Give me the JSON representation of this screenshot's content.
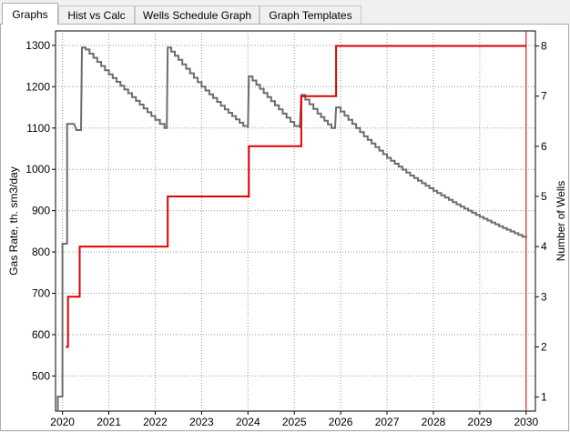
{
  "tabs": [
    {
      "label": "Graphs",
      "active": true
    },
    {
      "label": "Hist vs Calc",
      "active": false
    },
    {
      "label": "Wells Schedule Graph",
      "active": false
    },
    {
      "label": "Graph Templates",
      "active": false
    }
  ],
  "chart_data": {
    "type": "line",
    "title": "",
    "xlabel": "",
    "ylabel": "Gas Rate, th. sm3/day",
    "y2label": "Number of Wells",
    "xlim": [
      2019.85,
      2030.2
    ],
    "ylim": [
      415,
      1335
    ],
    "y2lim": [
      0.72,
      8.3
    ],
    "grid": true,
    "x_ticks": [
      2020,
      2021,
      2022,
      2023,
      2024,
      2025,
      2026,
      2027,
      2028,
      2029,
      2030
    ],
    "y_ticks": [
      500,
      600,
      700,
      800,
      900,
      1000,
      1100,
      1200,
      1300
    ],
    "y2_ticks": [
      1,
      2,
      3,
      4,
      5,
      6,
      7,
      8
    ],
    "vline_x": 2030,
    "colors": {
      "gas": "#6d6d6d",
      "wells": "#e00000",
      "vline": "#cc0000",
      "grid": "#9a9a9a"
    },
    "series": [
      {
        "axis": "left",
        "points": [
          [
            2019.9,
            415
          ],
          [
            2019.9,
            450
          ],
          [
            2020.0,
            450
          ],
          [
            2020.0,
            820
          ],
          [
            2020.1,
            820
          ],
          [
            2020.1,
            1110
          ],
          [
            2020.25,
            1110
          ],
          [
            2020.3,
            1095
          ],
          [
            2020.4,
            1095
          ],
          [
            2020.42,
            1295
          ],
          [
            2020.5,
            1290
          ],
          [
            2021.0,
            1230
          ],
          [
            2021.5,
            1175
          ],
          [
            2022.0,
            1120
          ],
          [
            2022.2,
            1100
          ],
          [
            2022.25,
            1100
          ],
          [
            2022.27,
            1295
          ],
          [
            2022.5,
            1265
          ],
          [
            2023.0,
            1200
          ],
          [
            2023.5,
            1145
          ],
          [
            2023.9,
            1105
          ],
          [
            2024.0,
            1100
          ],
          [
            2024.02,
            1225
          ],
          [
            2024.5,
            1165
          ],
          [
            2025.0,
            1105
          ],
          [
            2025.12,
            1100
          ],
          [
            2025.15,
            1180
          ],
          [
            2025.5,
            1135
          ],
          [
            2025.8,
            1100
          ],
          [
            2025.88,
            1100
          ],
          [
            2025.9,
            1150
          ],
          [
            2026.0,
            1140
          ],
          [
            2026.5,
            1080
          ],
          [
            2027.0,
            1028
          ],
          [
            2027.5,
            985
          ],
          [
            2028.0,
            948
          ],
          [
            2028.5,
            915
          ],
          [
            2029.0,
            885
          ],
          [
            2029.5,
            858
          ],
          [
            2030.0,
            833
          ]
        ]
      },
      {
        "name": "",
        "axis": "right",
        "points": [
          [
            2020.07,
            2
          ],
          [
            2020.12,
            2
          ],
          [
            2020.12,
            3
          ],
          [
            2020.37,
            3
          ],
          [
            2020.37,
            4
          ],
          [
            2022.27,
            4
          ],
          [
            2022.27,
            5
          ],
          [
            2024.02,
            5
          ],
          [
            2024.02,
            6
          ],
          [
            2025.15,
            6
          ],
          [
            2025.15,
            7
          ],
          [
            2025.9,
            7
          ],
          [
            2025.9,
            8
          ],
          [
            2030.0,
            8
          ]
        ]
      }
    ]
  }
}
